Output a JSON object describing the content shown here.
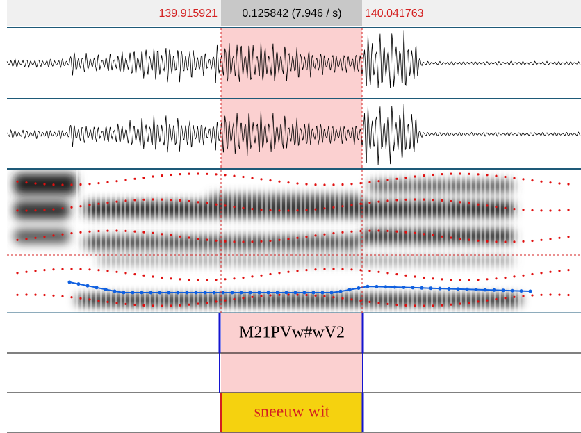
{
  "selection": {
    "start": "139.915921",
    "duration": "0.125842 (7.946 / s)",
    "end": "140.041763"
  },
  "annotations": [
    "M21PVw#wV2",
    "sneeuw wit"
  ]
}
